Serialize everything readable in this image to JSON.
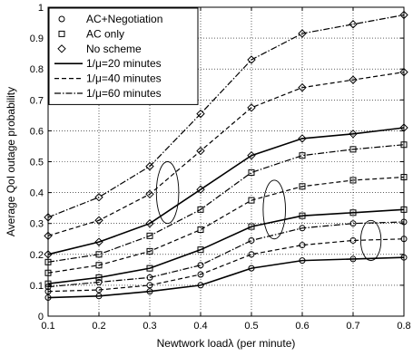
{
  "chart_data": {
    "type": "line",
    "xlabel": "Newtwork loadλ (per minute)",
    "ylabel": "Average QoI outage probability",
    "xlim": [
      0.1,
      0.8
    ],
    "ylim": [
      0,
      1
    ],
    "xticks": [
      "0.1",
      "0.2",
      "0.3",
      "0.4",
      "0.5",
      "0.6",
      "0.7",
      "0.8"
    ],
    "yticks": [
      "0",
      "0.1",
      "0.2",
      "0.3",
      "0.4",
      "0.5",
      "0.6",
      "0.7",
      "0.8",
      "0.9",
      "1"
    ],
    "grid": true,
    "legend_position": "top-left",
    "legend": {
      "markers": [
        {
          "label": "AC+Negotiation",
          "marker": "circle"
        },
        {
          "label": "AC only",
          "marker": "square"
        },
        {
          "label": "No scheme",
          "marker": "diamond"
        }
      ],
      "lines": [
        {
          "label": "1/μ=20 minutes",
          "dash": "solid"
        },
        {
          "label": "1/μ=40 minutes",
          "dash": "dashed"
        },
        {
          "label": "1/μ=60 minutes",
          "dash": "dashdot"
        }
      ]
    },
    "x": [
      0.1,
      0.2,
      0.3,
      0.4,
      0.5,
      0.6,
      0.7,
      0.8
    ],
    "series": [
      {
        "marker": "diamond",
        "dash": "dashdot",
        "values": [
          0.32,
          0.385,
          0.485,
          0.655,
          0.83,
          0.915,
          0.945,
          0.975
        ]
      },
      {
        "marker": "diamond",
        "dash": "dashed",
        "values": [
          0.26,
          0.31,
          0.395,
          0.535,
          0.675,
          0.74,
          0.765,
          0.79
        ]
      },
      {
        "marker": "diamond",
        "dash": "solid",
        "values": [
          0.2,
          0.24,
          0.3,
          0.41,
          0.52,
          0.575,
          0.59,
          0.61
        ]
      },
      {
        "marker": "square",
        "dash": "dashdot",
        "values": [
          0.175,
          0.2,
          0.26,
          0.345,
          0.465,
          0.52,
          0.54,
          0.555
        ]
      },
      {
        "marker": "square",
        "dash": "dashed",
        "values": [
          0.14,
          0.165,
          0.21,
          0.28,
          0.375,
          0.42,
          0.44,
          0.45
        ]
      },
      {
        "marker": "square",
        "dash": "solid",
        "values": [
          0.105,
          0.125,
          0.155,
          0.215,
          0.29,
          0.325,
          0.335,
          0.345
        ]
      },
      {
        "marker": "circle",
        "dash": "dashdot",
        "values": [
          0.095,
          0.11,
          0.125,
          0.165,
          0.245,
          0.285,
          0.3,
          0.305
        ]
      },
      {
        "marker": "circle",
        "dash": "dashed",
        "values": [
          0.08,
          0.085,
          0.1,
          0.135,
          0.2,
          0.23,
          0.245,
          0.25
        ]
      },
      {
        "marker": "circle",
        "dash": "solid",
        "values": [
          0.06,
          0.065,
          0.08,
          0.1,
          0.155,
          0.18,
          0.185,
          0.19
        ]
      }
    ],
    "annotations": [
      {
        "type": "ellipse",
        "cx": 0.335,
        "cy": 0.4,
        "rx": 0.022,
        "ry": 0.1
      },
      {
        "type": "ellipse",
        "cx": 0.545,
        "cy": 0.345,
        "rx": 0.022,
        "ry": 0.095
      },
      {
        "type": "ellipse",
        "cx": 0.735,
        "cy": 0.245,
        "rx": 0.02,
        "ry": 0.065
      }
    ]
  }
}
